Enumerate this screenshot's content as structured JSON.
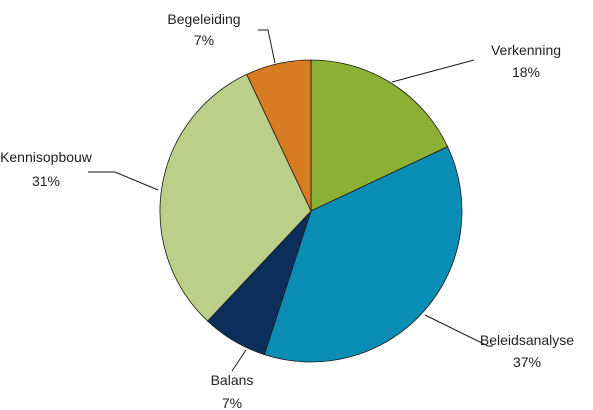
{
  "chart_data": {
    "type": "pie",
    "title": "",
    "slices": [
      {
        "label": "Verkenning",
        "value": 18,
        "pct_label": "18%",
        "color": "#8bb033"
      },
      {
        "label": "Beleidsanalyse",
        "value": 37,
        "pct_label": "37%",
        "color": "#0a8db5"
      },
      {
        "label": "Balans",
        "value": 7,
        "pct_label": "7%",
        "color": "#0b2f5a"
      },
      {
        "label": "Kennisopbouw",
        "value": 31,
        "pct_label": "31%",
        "color": "#bbcf89"
      },
      {
        "label": "Begeleiding",
        "value": 7,
        "pct_label": "7%",
        "color": "#d87c23"
      }
    ],
    "start_angle_deg": 0,
    "direction": "clockwise",
    "legend": "none",
    "labels": "outside with leader lines"
  }
}
